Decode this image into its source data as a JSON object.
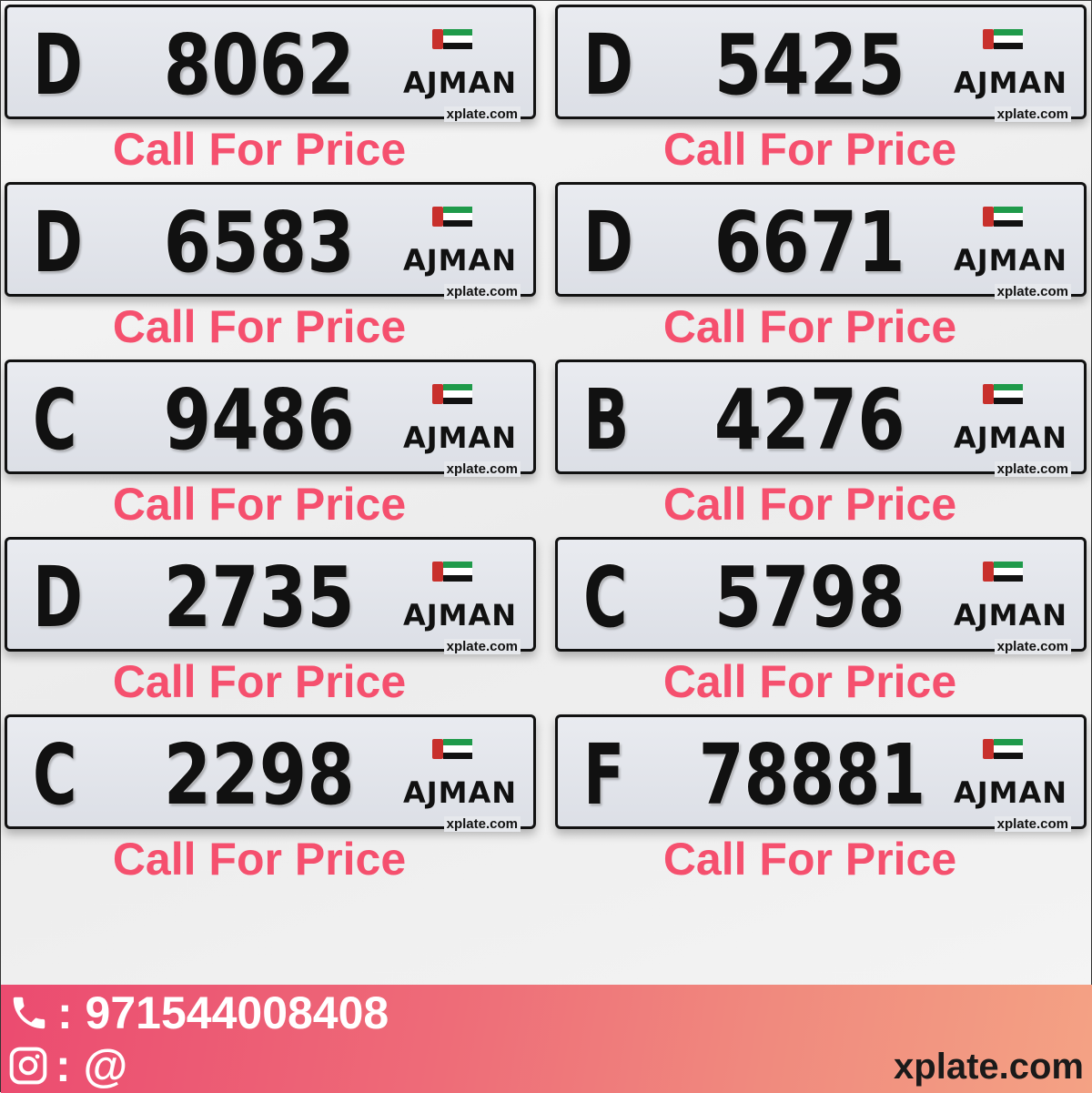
{
  "plates": [
    {
      "letter": "D",
      "number": "8062",
      "emirate": "AJMAN",
      "watermark": "xplate.com",
      "price": "Call For Price"
    },
    {
      "letter": "D",
      "number": "5425",
      "emirate": "AJMAN",
      "watermark": "xplate.com",
      "price": "Call For Price"
    },
    {
      "letter": "D",
      "number": "6583",
      "emirate": "AJMAN",
      "watermark": "xplate.com",
      "price": "Call For Price"
    },
    {
      "letter": "D",
      "number": "6671",
      "emirate": "AJMAN",
      "watermark": "xplate.com",
      "price": "Call For Price"
    },
    {
      "letter": "C",
      "number": "9486",
      "emirate": "AJMAN",
      "watermark": "xplate.com",
      "price": "Call For Price"
    },
    {
      "letter": "B",
      "number": "4276",
      "emirate": "AJMAN",
      "watermark": "xplate.com",
      "price": "Call For Price"
    },
    {
      "letter": "D",
      "number": "2735",
      "emirate": "AJMAN",
      "watermark": "xplate.com",
      "price": "Call For Price"
    },
    {
      "letter": "C",
      "number": "5798",
      "emirate": "AJMAN",
      "watermark": "xplate.com",
      "price": "Call For Price"
    },
    {
      "letter": "C",
      "number": "2298",
      "emirate": "AJMAN",
      "watermark": "xplate.com",
      "price": "Call For Price"
    },
    {
      "letter": "F",
      "number": "78881",
      "emirate": "AJMAN",
      "watermark": "xplate.com",
      "price": "Call For Price"
    }
  ],
  "footer": {
    "phone_icon": "phone-icon",
    "phone": ": 971544008408",
    "instagram_icon": "instagram-icon",
    "instagram": ": @",
    "site": "xplate.com"
  },
  "colors": {
    "price": "#f5506e",
    "footer_start": "#eb4b70",
    "footer_end": "#f4a284"
  }
}
